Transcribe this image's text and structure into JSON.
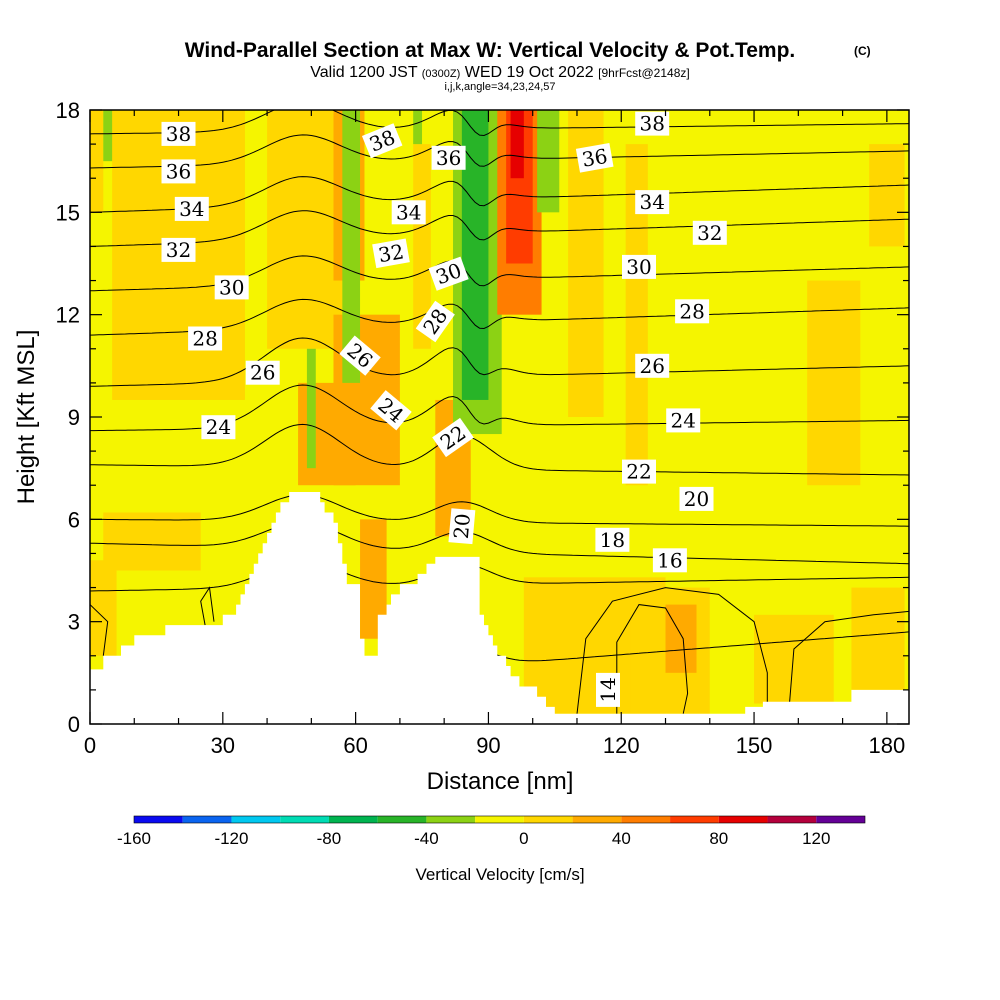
{
  "chart_data": {
    "type": "heatmap",
    "title": "Wind-Parallel Section at Max W: Vertical Velocity & Pot.Temp.",
    "title_tag": "(C)",
    "subtitle_main": "Valid 1200 JST",
    "subtitle_utc": "(0300Z)",
    "subtitle_date": "WED 19 Oct 2022",
    "subtitle_run": "[9hrFcst@2148z]",
    "subtitle2": "i,j,k,angle=34,23,24,57",
    "xlabel": "Distance [nm]",
    "ylabel": "Height [Kft MSL]",
    "xlim": [
      0,
      185
    ],
    "ylim": [
      0,
      18
    ],
    "x_ticks": [
      {
        "value": 0,
        "label": "0"
      },
      {
        "value": 30,
        "label": "30"
      },
      {
        "value": 60,
        "label": "60"
      },
      {
        "value": 90,
        "label": "90"
      },
      {
        "value": 120,
        "label": "120"
      },
      {
        "value": 150,
        "label": "150"
      },
      {
        "value": 180,
        "label": "180"
      }
    ],
    "y_ticks": [
      {
        "value": 0,
        "label": "0"
      },
      {
        "value": 3,
        "label": "3"
      },
      {
        "value": 6,
        "label": "6"
      },
      {
        "value": 9,
        "label": "9"
      },
      {
        "value": 12,
        "label": "12"
      },
      {
        "value": 15,
        "label": "15"
      },
      {
        "value": 18,
        "label": "18"
      }
    ],
    "colorbar": {
      "label": "Vertical Velocity [cm/s]",
      "min": -160,
      "max": 140,
      "step": 20,
      "tick_labels": [
        {
          "value": -160,
          "label": "-160"
        },
        {
          "value": -120,
          "label": "-120"
        },
        {
          "value": -80,
          "label": "-80"
        },
        {
          "value": -40,
          "label": "-40"
        },
        {
          "value": 0,
          "label": "0"
        },
        {
          "value": 40,
          "label": "40"
        },
        {
          "value": 80,
          "label": "80"
        },
        {
          "value": 120,
          "label": "120"
        }
      ],
      "colors": [
        "#0a0af0",
        "#0a64f0",
        "#00c8f0",
        "#00dcb4",
        "#00b450",
        "#28b428",
        "#8cd214",
        "#f5f500",
        "#ffd700",
        "#ffaa00",
        "#ff7d00",
        "#ff3c00",
        "#e60000",
        "#b4003c",
        "#640096"
      ]
    },
    "background_fill": "#f5f500",
    "velocity_cells": [
      {
        "x0": 0,
        "x1": 3,
        "y0": 15,
        "y1": 18,
        "w": 10
      },
      {
        "x0": 3,
        "x1": 6,
        "y0": 16.5,
        "y1": 18,
        "w": -30
      },
      {
        "x0": 5,
        "x1": 35,
        "y0": 9.5,
        "y1": 18,
        "w": 10
      },
      {
        "x0": 40,
        "x1": 58,
        "y0": 11,
        "y1": 18,
        "w": 10
      },
      {
        "x0": 3,
        "x1": 25,
        "y0": 4.5,
        "y1": 6.2,
        "w": 10
      },
      {
        "x0": 0,
        "x1": 6,
        "y0": 2,
        "y1": 4.8,
        "w": 10
      },
      {
        "x0": 55,
        "x1": 70,
        "y0": 7,
        "y1": 12,
        "w": 30
      },
      {
        "x0": 47,
        "x1": 60,
        "y0": 7,
        "y1": 10,
        "w": 30
      },
      {
        "x0": 61,
        "x1": 67,
        "y0": 2.5,
        "y1": 6,
        "w": 30
      },
      {
        "x0": 55,
        "x1": 62,
        "y0": 13,
        "y1": 18,
        "w": 30
      },
      {
        "x0": 73,
        "x1": 77,
        "y0": 11,
        "y1": 17,
        "w": 10
      },
      {
        "x0": 78,
        "x1": 86,
        "y0": 5.5,
        "y1": 9.5,
        "w": 30
      },
      {
        "x0": 57,
        "x1": 61,
        "y0": 10,
        "y1": 18,
        "w": -30
      },
      {
        "x0": 49,
        "x1": 51,
        "y0": 7.5,
        "y1": 11,
        "w": -30
      },
      {
        "x0": 73,
        "x1": 75,
        "y0": 17,
        "y1": 18,
        "w": -30
      },
      {
        "x0": 82,
        "x1": 93,
        "y0": 8.5,
        "y1": 18,
        "w": -30
      },
      {
        "x0": 84,
        "x1": 90,
        "y0": 9.5,
        "y1": 18,
        "w": -50
      },
      {
        "x0": 92,
        "x1": 102,
        "y0": 12,
        "y1": 18,
        "w": 50
      },
      {
        "x0": 94,
        "x1": 100,
        "y0": 13.5,
        "y1": 18,
        "w": 70
      },
      {
        "x0": 95,
        "x1": 98,
        "y0": 16,
        "y1": 18,
        "w": 90
      },
      {
        "x0": 101,
        "x1": 106,
        "y0": 15,
        "y1": 18,
        "w": -30
      },
      {
        "x0": 108,
        "x1": 116,
        "y0": 9,
        "y1": 18,
        "w": 10
      },
      {
        "x0": 121,
        "x1": 126,
        "y0": 7,
        "y1": 17,
        "w": 10
      },
      {
        "x0": 162,
        "x1": 174,
        "y0": 7,
        "y1": 13,
        "w": 10
      },
      {
        "x0": 176,
        "x1": 184,
        "y0": 14,
        "y1": 17,
        "w": 10
      },
      {
        "x0": 98,
        "x1": 130,
        "y0": 0.3,
        "y1": 4.3,
        "w": 10
      },
      {
        "x0": 122,
        "x1": 140,
        "y0": 0.3,
        "y1": 4,
        "w": 10
      },
      {
        "x0": 130,
        "x1": 137,
        "y0": 1.5,
        "y1": 3.5,
        "w": 30
      },
      {
        "x0": 150,
        "x1": 168,
        "y0": 0.6,
        "y1": 3.2,
        "w": 10
      },
      {
        "x0": 172,
        "x1": 184,
        "y0": 1,
        "y1": 4,
        "w": 10
      }
    ],
    "terrain": [
      {
        "x": 0,
        "y": 1.6
      },
      {
        "x": 3,
        "y": 1.6
      },
      {
        "x": 3,
        "y": 2.0
      },
      {
        "x": 7,
        "y": 2.0
      },
      {
        "x": 7,
        "y": 2.3
      },
      {
        "x": 10,
        "y": 2.3
      },
      {
        "x": 10,
        "y": 2.6
      },
      {
        "x": 17,
        "y": 2.6
      },
      {
        "x": 17,
        "y": 2.9
      },
      {
        "x": 30,
        "y": 2.9
      },
      {
        "x": 30,
        "y": 3.2
      },
      {
        "x": 33,
        "y": 3.2
      },
      {
        "x": 33,
        "y": 3.5
      },
      {
        "x": 34,
        "y": 3.5
      },
      {
        "x": 34,
        "y": 3.8
      },
      {
        "x": 35,
        "y": 3.8
      },
      {
        "x": 35,
        "y": 4.1
      },
      {
        "x": 36,
        "y": 4.1
      },
      {
        "x": 36,
        "y": 4.4
      },
      {
        "x": 37,
        "y": 4.4
      },
      {
        "x": 37,
        "y": 4.7
      },
      {
        "x": 38,
        "y": 4.7
      },
      {
        "x": 38,
        "y": 5.0
      },
      {
        "x": 39,
        "y": 5.0
      },
      {
        "x": 39,
        "y": 5.3
      },
      {
        "x": 40,
        "y": 5.3
      },
      {
        "x": 40,
        "y": 5.6
      },
      {
        "x": 41,
        "y": 5.6
      },
      {
        "x": 41,
        "y": 5.9
      },
      {
        "x": 42,
        "y": 5.9
      },
      {
        "x": 42,
        "y": 6.2
      },
      {
        "x": 43,
        "y": 6.2
      },
      {
        "x": 43,
        "y": 6.5
      },
      {
        "x": 45,
        "y": 6.5
      },
      {
        "x": 45,
        "y": 6.8
      },
      {
        "x": 52,
        "y": 6.8
      },
      {
        "x": 52,
        "y": 6.5
      },
      {
        "x": 53,
        "y": 6.5
      },
      {
        "x": 53,
        "y": 6.2
      },
      {
        "x": 55,
        "y": 6.2
      },
      {
        "x": 55,
        "y": 5.9
      },
      {
        "x": 56,
        "y": 5.9
      },
      {
        "x": 56,
        "y": 5.3
      },
      {
        "x": 57,
        "y": 5.3
      },
      {
        "x": 57,
        "y": 4.7
      },
      {
        "x": 58,
        "y": 4.7
      },
      {
        "x": 58,
        "y": 4.1
      },
      {
        "x": 61,
        "y": 4.1
      },
      {
        "x": 61,
        "y": 2.5
      },
      {
        "x": 62,
        "y": 2.5
      },
      {
        "x": 62,
        "y": 2.0
      },
      {
        "x": 65,
        "y": 2.0
      },
      {
        "x": 65,
        "y": 3.2
      },
      {
        "x": 67,
        "y": 3.2
      },
      {
        "x": 67,
        "y": 3.5
      },
      {
        "x": 68,
        "y": 3.5
      },
      {
        "x": 68,
        "y": 3.8
      },
      {
        "x": 70,
        "y": 3.8
      },
      {
        "x": 70,
        "y": 4.1
      },
      {
        "x": 74,
        "y": 4.1
      },
      {
        "x": 74,
        "y": 4.4
      },
      {
        "x": 76,
        "y": 4.4
      },
      {
        "x": 76,
        "y": 4.7
      },
      {
        "x": 78,
        "y": 4.7
      },
      {
        "x": 78,
        "y": 4.9
      },
      {
        "x": 88,
        "y": 4.9
      },
      {
        "x": 88,
        "y": 3.2
      },
      {
        "x": 89,
        "y": 3.2
      },
      {
        "x": 89,
        "y": 2.9
      },
      {
        "x": 90,
        "y": 2.9
      },
      {
        "x": 90,
        "y": 2.6
      },
      {
        "x": 91,
        "y": 2.6
      },
      {
        "x": 91,
        "y": 2.3
      },
      {
        "x": 92,
        "y": 2.3
      },
      {
        "x": 92,
        "y": 2.0
      },
      {
        "x": 94,
        "y": 2.0
      },
      {
        "x": 94,
        "y": 1.7
      },
      {
        "x": 95,
        "y": 1.7
      },
      {
        "x": 95,
        "y": 1.4
      },
      {
        "x": 97,
        "y": 1.4
      },
      {
        "x": 97,
        "y": 1.1
      },
      {
        "x": 101,
        "y": 1.1
      },
      {
        "x": 101,
        "y": 0.8
      },
      {
        "x": 103,
        "y": 0.8
      },
      {
        "x": 103,
        "y": 0.5
      },
      {
        "x": 105,
        "y": 0.5
      },
      {
        "x": 105,
        "y": 0.3
      },
      {
        "x": 111,
        "y": 0.3
      },
      {
        "x": 111,
        "y": 0.3
      },
      {
        "x": 148,
        "y": 0.3
      },
      {
        "x": 148,
        "y": 0.5
      },
      {
        "x": 152,
        "y": 0.5
      },
      {
        "x": 152,
        "y": 0.65
      },
      {
        "x": 172,
        "y": 0.65
      },
      {
        "x": 172,
        "y": 1.0
      },
      {
        "x": 185,
        "y": 1.0
      }
    ],
    "contours": [
      {
        "value": 14,
        "label": "14",
        "y_left": 0.8,
        "y_right": 2.7
      },
      {
        "value": 16,
        "label": "16",
        "y_left": 3.9,
        "y_right": 4.3
      },
      {
        "value": 18,
        "label": "18",
        "y_left": 5.3,
        "y_right": 4.7
      },
      {
        "value": 20,
        "label": "20",
        "y_left": 6.0,
        "y_right": 5.8
      },
      {
        "value": 22,
        "label": "22",
        "y_left": 7.6,
        "y_right": 7.3
      },
      {
        "value": 24,
        "label": "24",
        "y_left": 8.6,
        "y_right": 8.9
      },
      {
        "value": 26,
        "label": "26",
        "y_left": 9.9,
        "y_right": 10.5
      },
      {
        "value": 28,
        "label": "28",
        "y_left": 11.4,
        "y_right": 12.2
      },
      {
        "value": 30,
        "label": "30",
        "y_left": 12.7,
        "y_right": 13.4
      },
      {
        "value": 32,
        "label": "32",
        "y_left": 14.0,
        "y_right": 14.8
      },
      {
        "value": 34,
        "label": "34",
        "y_left": 15.0,
        "y_right": 15.8
      },
      {
        "value": 36,
        "label": "36",
        "y_left": 16.3,
        "y_right": 16.8
      },
      {
        "value": 38,
        "label": "38",
        "y_left": 17.3,
        "y_right": 17.6
      }
    ],
    "contour_labels": [
      {
        "text": "38",
        "x": 20,
        "y": 17.3,
        "rot": 0
      },
      {
        "text": "36",
        "x": 20,
        "y": 16.2,
        "rot": 0
      },
      {
        "text": "34",
        "x": 23,
        "y": 15.1,
        "rot": 0
      },
      {
        "text": "32",
        "x": 20,
        "y": 13.9,
        "rot": 0
      },
      {
        "text": "30",
        "x": 32,
        "y": 12.8,
        "rot": 0
      },
      {
        "text": "28",
        "x": 26,
        "y": 11.3,
        "rot": 0
      },
      {
        "text": "26",
        "x": 39,
        "y": 10.3,
        "rot": 0
      },
      {
        "text": "24",
        "x": 29,
        "y": 8.7,
        "rot": 0
      },
      {
        "text": "38",
        "x": 66,
        "y": 17.1,
        "rot": -22
      },
      {
        "text": "36",
        "x": 81,
        "y": 16.6,
        "rot": 0
      },
      {
        "text": "34",
        "x": 72,
        "y": 15.0,
        "rot": 0
      },
      {
        "text": "32",
        "x": 68,
        "y": 13.8,
        "rot": -10
      },
      {
        "text": "30",
        "x": 81,
        "y": 13.2,
        "rot": -20
      },
      {
        "text": "28",
        "x": 78,
        "y": 11.8,
        "rot": -55
      },
      {
        "text": "26",
        "x": 61,
        "y": 10.8,
        "rot": 40
      },
      {
        "text": "24",
        "x": 68,
        "y": 9.2,
        "rot": 40
      },
      {
        "text": "22",
        "x": 82,
        "y": 8.4,
        "rot": -35
      },
      {
        "text": "20",
        "x": 84,
        "y": 5.8,
        "rot": -85
      },
      {
        "text": "38",
        "x": 127,
        "y": 17.6,
        "rot": 0
      },
      {
        "text": "36",
        "x": 114,
        "y": 16.6,
        "rot": -10
      },
      {
        "text": "34",
        "x": 127,
        "y": 15.3,
        "rot": 0
      },
      {
        "text": "32",
        "x": 140,
        "y": 14.4,
        "rot": 0
      },
      {
        "text": "30",
        "x": 124,
        "y": 13.4,
        "rot": 0
      },
      {
        "text": "28",
        "x": 136,
        "y": 12.1,
        "rot": 0
      },
      {
        "text": "26",
        "x": 127,
        "y": 10.5,
        "rot": 0
      },
      {
        "text": "24",
        "x": 134,
        "y": 8.9,
        "rot": 0
      },
      {
        "text": "22",
        "x": 124,
        "y": 7.4,
        "rot": 0
      },
      {
        "text": "20",
        "x": 137,
        "y": 6.6,
        "rot": 0
      },
      {
        "text": "18",
        "x": 118,
        "y": 5.4,
        "rot": 0
      },
      {
        "text": "16",
        "x": 131,
        "y": 4.8,
        "rot": 0
      },
      {
        "text": "14",
        "x": 117,
        "y": 1.0,
        "rot": -90
      }
    ],
    "extra_contours": [
      {
        "points": [
          [
            110,
            0.3
          ],
          [
            112,
            2.5
          ],
          [
            118,
            3.6
          ],
          [
            130,
            4.0
          ],
          [
            142,
            3.8
          ],
          [
            150,
            3.0
          ],
          [
            153,
            1.5
          ],
          [
            153,
            0.3
          ]
        ]
      },
      {
        "points": [
          [
            119,
            0.3
          ],
          [
            119,
            2.4
          ],
          [
            124,
            3.5
          ],
          [
            130,
            3.4
          ],
          [
            134,
            2.5
          ],
          [
            135,
            0.9
          ],
          [
            134,
            0.3
          ]
        ]
      },
      {
        "points": [
          [
            158,
            0.6
          ],
          [
            159,
            2.2
          ],
          [
            166,
            3.0
          ],
          [
            177,
            3.2
          ],
          [
            185,
            3.3
          ]
        ]
      },
      {
        "points": [
          [
            26,
            2.9
          ],
          [
            25,
            3.6
          ],
          [
            27,
            4.0
          ],
          [
            28,
            3.0
          ]
        ]
      },
      {
        "points": [
          [
            0,
            3.5
          ],
          [
            4,
            3.0
          ],
          [
            3,
            2.0
          ]
        ]
      }
    ]
  }
}
